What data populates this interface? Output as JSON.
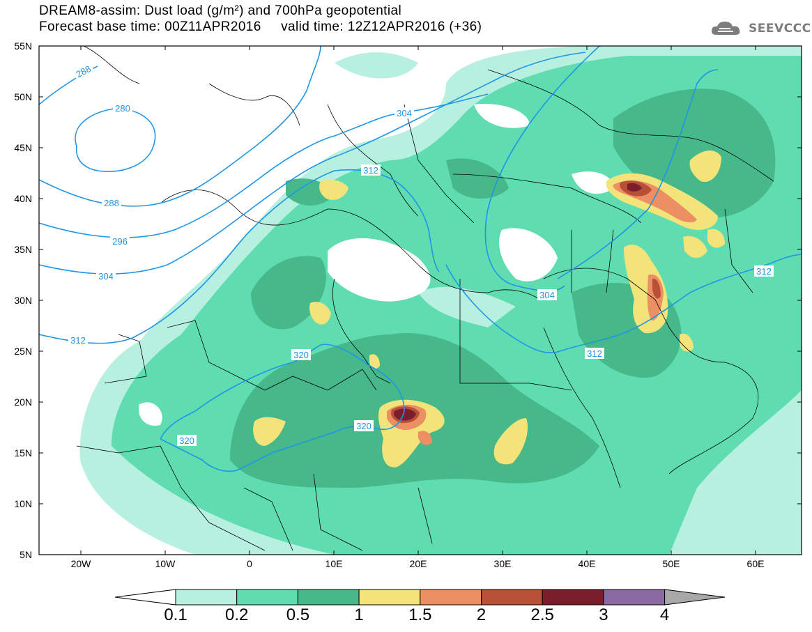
{
  "title_line1": "DREAM8-assim: Dust load (g/m²) and 700hPa geopotential",
  "title_line2": "Forecast base time: 00Z11APR2016     valid time: 12Z12APR2016 (+36)",
  "logo": {
    "icon": "cloud-icon",
    "text": "SEEVCCC"
  },
  "lat_labels": [
    "55N",
    "50N",
    "45N",
    "40N",
    "35N",
    "30N",
    "25N",
    "20N",
    "15N",
    "10N",
    "5N"
  ],
  "lon_labels": [
    "20W",
    "10W",
    "0",
    "10E",
    "20E",
    "30E",
    "40E",
    "50E",
    "60E"
  ],
  "colorbar": {
    "tick_labels": [
      "0.1",
      "0.2",
      "0.5",
      "1",
      "1.5",
      "2",
      "2.5",
      "3",
      "4"
    ],
    "colors": [
      "#b8f0e0",
      "#5fdcb0",
      "#46b88a",
      "#f2e37a",
      "#ec8f62",
      "#b85038",
      "#7a1e2c",
      "#8a6aa0",
      "#a8a8a8"
    ],
    "low_end_color": "#ffffff"
  },
  "contour_labels": [
    "288",
    "280",
    "288",
    "296",
    "304",
    "312",
    "304",
    "312",
    "320",
    "320",
    "320",
    "304",
    "312",
    "312"
  ],
  "colors": {
    "contour": "#1e96e6",
    "border": "#000000"
  }
}
